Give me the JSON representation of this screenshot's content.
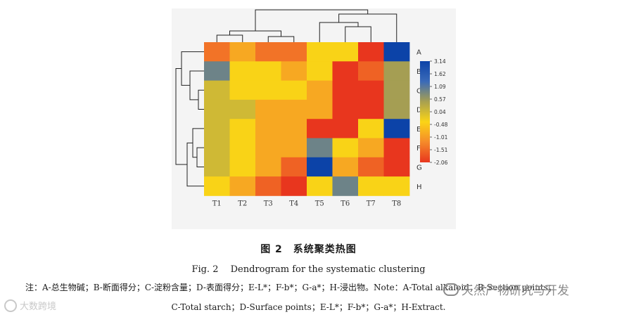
{
  "chart_data": {
    "type": "heatmap",
    "columns": [
      "T1",
      "T2",
      "T3",
      "T4",
      "T5",
      "T6",
      "T7",
      "T8"
    ],
    "rows": [
      "A",
      "B",
      "C",
      "D",
      "E",
      "F",
      "G",
      "H"
    ],
    "values": [
      [
        -1.3,
        -0.6,
        -1.3,
        -1.3,
        0.04,
        0.04,
        -2.06,
        3.14
      ],
      [
        1.62,
        0.04,
        0.04,
        -0.6,
        0.04,
        -2.06,
        -1.51,
        1.09
      ],
      [
        0.57,
        0.04,
        0.04,
        0.04,
        -0.6,
        -2.06,
        -2.06,
        1.09
      ],
      [
        0.57,
        0.57,
        -0.6,
        -0.6,
        -0.6,
        -2.06,
        -2.06,
        1.09
      ],
      [
        0.57,
        0.04,
        -0.6,
        -0.6,
        -2.06,
        -2.06,
        0.04,
        3.14
      ],
      [
        0.57,
        0.04,
        -0.6,
        -0.6,
        1.62,
        0.04,
        -0.6,
        -2.06
      ],
      [
        0.57,
        0.04,
        -0.6,
        -1.51,
        3.14,
        -0.6,
        -1.51,
        -2.06
      ],
      [
        0.04,
        -0.6,
        -1.51,
        -2.06,
        0.04,
        1.62,
        0.04,
        0.04
      ]
    ],
    "colorbar_ticks": [
      "3.14",
      "1.62",
      "1.09",
      "0.57",
      "0.04",
      "-0.48",
      "-1.01",
      "-1.51",
      "-2.06"
    ],
    "vmin": -2.06,
    "vmax": 3.14,
    "colormap": [
      "#e8361e",
      "#f58a2a",
      "#fbd416",
      "#a8a050",
      "#3a6ab8",
      "#0c43a8"
    ],
    "dendrogram": "row and column clustering trees"
  },
  "captions": {
    "fig_cn": "图 2　系统聚类热图",
    "fig_en": "Fig. 2　 Dendrogram for the systematic clustering",
    "note_line1": "注：A-总生物碱；B-断面得分；C-淀粉含量；D-表面得分；E-L*；F-b*；G-a*；H-浸出物。Note：A-Total alkaloid；B-Section points；",
    "note_line2": "C-Total starch；D-Surface points；E-L*；F-b*；G-a*；H-Extract."
  },
  "watermarks": {
    "left": "大数跨境",
    "right": "天然产物研究与开发"
  }
}
